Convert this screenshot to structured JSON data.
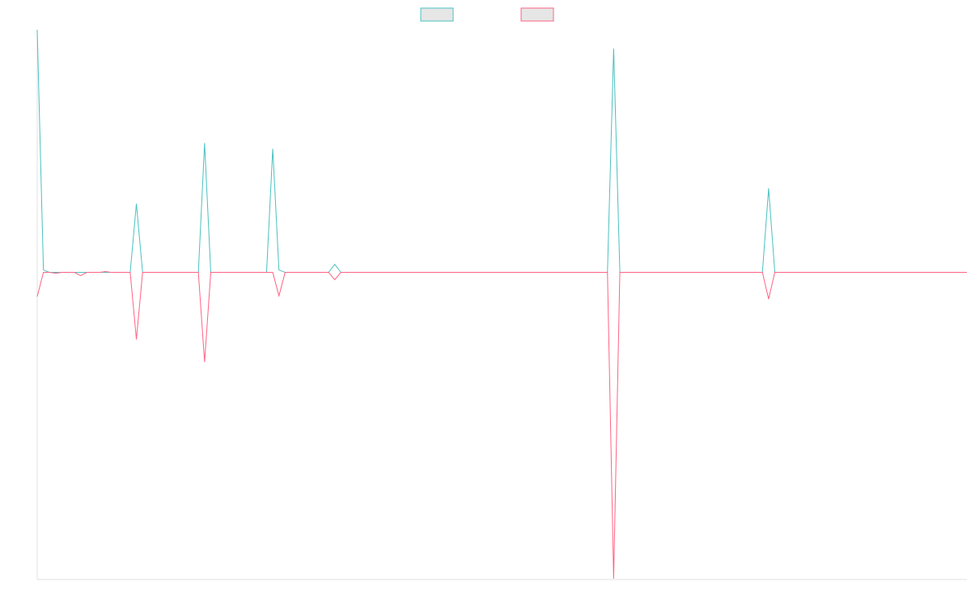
{
  "chart_data": {
    "type": "line",
    "legend": "top",
    "ylim": [
      -380,
      300
    ],
    "series": [
      {
        "color": "#4bc0c0",
        "values": [
          300,
          3,
          0,
          0,
          0,
          0,
          0,
          0,
          0,
          0,
          0,
          0,
          0,
          0,
          0,
          0,
          85,
          0,
          0,
          0,
          0,
          0,
          0,
          0,
          0,
          0,
          0,
          160,
          0,
          0,
          0,
          0,
          0,
          0,
          0,
          0,
          0,
          0,
          153,
          3,
          0,
          0,
          0,
          0,
          0,
          0,
          0,
          0,
          10,
          0,
          0,
          0,
          0,
          0,
          0,
          0,
          0,
          0,
          0,
          0,
          0,
          0,
          0,
          0,
          0,
          0,
          0,
          0,
          0,
          0,
          0,
          0,
          0,
          0,
          0,
          0,
          0,
          0,
          0,
          0,
          0,
          0,
          0,
          0,
          0,
          0,
          0,
          0,
          0,
          0,
          0,
          0,
          0,
          277,
          0,
          0,
          0,
          0,
          0,
          0,
          0,
          0,
          0,
          0,
          0,
          0,
          0,
          0,
          0,
          0,
          0,
          0,
          0,
          0,
          0,
          0,
          0,
          0,
          104,
          0,
          0,
          0,
          0,
          0,
          0,
          0,
          0,
          0,
          0,
          0,
          0,
          0,
          0,
          0,
          0,
          0,
          0,
          0,
          0,
          0,
          0,
          0,
          0,
          0,
          0,
          0,
          0,
          0,
          0,
          0,
          0
        ]
      },
      {
        "color": "#ff6384",
        "values": [
          -30,
          0,
          0,
          -1,
          0,
          0,
          0,
          -4,
          0,
          0,
          0,
          1,
          0,
          0,
          0,
          0,
          -83,
          0,
          0,
          0,
          0,
          0,
          0,
          0,
          0,
          0,
          0,
          -111,
          0,
          0,
          0,
          0,
          0,
          0,
          0,
          0,
          0,
          0,
          0,
          -29,
          0,
          0,
          0,
          0,
          0,
          0,
          0,
          0,
          -9,
          0,
          0,
          0,
          0,
          0,
          0,
          0,
          0,
          0,
          0,
          0,
          0,
          0,
          0,
          0,
          0,
          0,
          0,
          0,
          0,
          0,
          0,
          0,
          0,
          0,
          0,
          0,
          0,
          0,
          0,
          0,
          0,
          0,
          0,
          0,
          0,
          0,
          0,
          0,
          0,
          0,
          0,
          0,
          0,
          -379,
          0,
          0,
          0,
          0,
          0,
          0,
          0,
          0,
          0,
          0,
          0,
          0,
          0,
          0,
          0,
          0,
          0,
          0,
          0,
          0,
          0,
          0,
          0,
          0,
          -33,
          0,
          0,
          0,
          0,
          0,
          0,
          0,
          0,
          0,
          0,
          0,
          0,
          0,
          0,
          0,
          0,
          0,
          0,
          0,
          0,
          0,
          0,
          0,
          0,
          0,
          0,
          0,
          0,
          0,
          0,
          0,
          0
        ]
      }
    ]
  }
}
